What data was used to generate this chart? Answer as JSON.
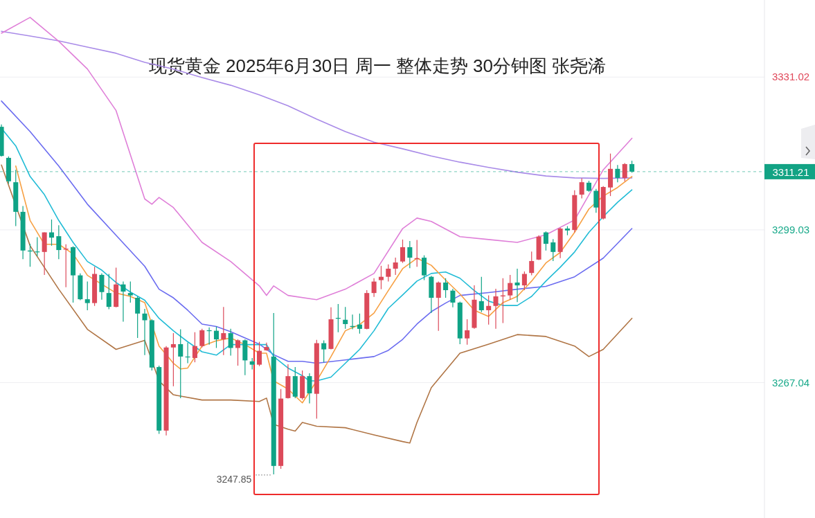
{
  "chart_data": {
    "type": "candlestick",
    "title": "现货黄金 2025年6月30日 周一 整体走势 30分钟图 张尧浠",
    "categories": [
      null,
      null,
      null,
      null,
      null,
      null,
      null,
      null,
      null,
      null,
      null,
      null,
      null,
      null,
      null,
      null,
      null,
      null,
      null,
      null,
      null,
      null,
      null,
      null,
      null,
      null,
      null,
      null,
      null,
      null,
      null,
      null,
      null,
      null,
      null,
      null,
      null,
      null,
      null,
      null,
      null,
      null,
      null,
      null,
      null,
      null,
      null,
      null,
      null,
      null,
      null,
      null,
      null,
      null,
      null,
      null,
      null,
      null,
      null,
      null,
      null,
      null,
      null,
      null,
      null,
      null,
      null,
      null,
      null,
      null,
      null,
      null,
      null,
      null,
      null,
      null,
      null,
      null,
      null,
      null,
      null,
      null,
      null,
      null,
      null,
      null,
      null,
      null,
      null
    ],
    "ohlc": [
      [
        3320.6,
        3321.1,
        3314.4,
        3314.5
      ],
      [
        3314.1,
        3314.4,
        3308.7,
        3309.2
      ],
      [
        3309.0,
        3311.6,
        3299.8,
        3302.8
      ],
      [
        3302.8,
        3304.0,
        3292.9,
        3294.7
      ],
      [
        3294.7,
        3296.1,
        3291.3,
        3294.5
      ],
      [
        3294.5,
        3297.5,
        3293.5,
        3294.4
      ],
      [
        3294.4,
        3298.5,
        3289.6,
        3298.5
      ],
      [
        3298.5,
        3301.2,
        3295.7,
        3297.4
      ],
      [
        3297.7,
        3300.0,
        3292.9,
        3294.8
      ],
      [
        3294.9,
        3296.0,
        3287.0,
        3295.1
      ],
      [
        3295.4,
        3295.6,
        3283.8,
        3289.5
      ],
      [
        3289.5,
        3289.9,
        3284.3,
        3284.5
      ],
      [
        3284.5,
        3288.2,
        3282.2,
        3283.7
      ],
      [
        3283.7,
        3291.3,
        3283.1,
        3289.8
      ],
      [
        3289.6,
        3289.9,
        3284.4,
        3286.0
      ],
      [
        3285.8,
        3289.8,
        3282.4,
        3282.9
      ],
      [
        3282.9,
        3291.1,
        3282.8,
        3287.6
      ],
      [
        3287.6,
        3288.2,
        3279.8,
        3286.1
      ],
      [
        3285.8,
        3288.2,
        3283.8,
        3285.3
      ],
      [
        3284.8,
        3285.1,
        3276.4,
        3281.5
      ],
      [
        3281.5,
        3282.5,
        3272.8,
        3280.1
      ],
      [
        3280.1,
        3280.3,
        3269.6,
        3270.2
      ],
      [
        3270.3,
        3270.6,
        3256.3,
        3257.0
      ],
      [
        3257.0,
        3274.7,
        3256.0,
        3274.4
      ],
      [
        3274.4,
        3277.4,
        3266.3,
        3275.1
      ],
      [
        3275.1,
        3278.2,
        3263.8,
        3272.5
      ],
      [
        3272.5,
        3275.4,
        3271.1,
        3272.4
      ],
      [
        3272.2,
        3277.6,
        3271.3,
        3274.7
      ],
      [
        3274.7,
        3278.3,
        3274.4,
        3278.0
      ],
      [
        3278.0,
        3278.6,
        3275.0,
        3277.9
      ],
      [
        3277.9,
        3278.8,
        3274.3,
        3276.1
      ],
      [
        3276.1,
        3282.9,
        3272.8,
        3277.4
      ],
      [
        3277.4,
        3278.3,
        3272.7,
        3274.3
      ],
      [
        3274.3,
        3276.1,
        3270.6,
        3275.9
      ],
      [
        3275.9,
        3276.1,
        3268.6,
        3271.7
      ],
      [
        3271.5,
        3272.2,
        3269.8,
        3270.8
      ],
      [
        3270.8,
        3275.6,
        3270.5,
        3273.7
      ],
      [
        3273.8,
        3275.4,
        3273.7,
        3274.5
      ],
      [
        3272.5,
        3281.6,
        3247.85,
        3249.6
      ],
      [
        3249.6,
        3265.7,
        3249.0,
        3263.7
      ],
      [
        3263.8,
        3270.9,
        3263.7,
        3268.4
      ],
      [
        3268.4,
        3270.3,
        3263.8,
        3264.1
      ],
      [
        3263.8,
        3269.6,
        3263.5,
        3268.4
      ],
      [
        3268.4,
        3269.0,
        3262.7,
        3264.8
      ],
      [
        3264.7,
        3276.0,
        3259.5,
        3275.3
      ],
      [
        3275.3,
        3275.9,
        3271.3,
        3274.0
      ],
      [
        3274.1,
        3282.8,
        3274.0,
        3280.3
      ],
      [
        3280.6,
        3283.5,
        3277.6,
        3280.5
      ],
      [
        3280.2,
        3282.9,
        3278.3,
        3279.3
      ],
      [
        3278.9,
        3281.3,
        3278.2,
        3278.7
      ],
      [
        3279.2,
        3281.5,
        3277.3,
        3278.3
      ],
      [
        3278.3,
        3286.4,
        3278.2,
        3285.8
      ],
      [
        3285.8,
        3288.9,
        3285.0,
        3288.2
      ],
      [
        3288.5,
        3291.5,
        3286.6,
        3289.2
      ],
      [
        3289.2,
        3291.8,
        3288.2,
        3290.9
      ],
      [
        3290.9,
        3293.2,
        3289.6,
        3292.2
      ],
      [
        3292.4,
        3297.0,
        3292.1,
        3295.4
      ],
      [
        3295.4,
        3296.7,
        3291.0,
        3293.2
      ],
      [
        3292.9,
        3296.9,
        3291.3,
        3293.1
      ],
      [
        3293.2,
        3293.7,
        3288.5,
        3289.5
      ],
      [
        3289.2,
        3289.4,
        3281.6,
        3284.8
      ],
      [
        3284.8,
        3288.2,
        3277.9,
        3288.0
      ],
      [
        3288.0,
        3288.9,
        3284.8,
        3286.4
      ],
      [
        3286.3,
        3286.7,
        3282.8,
        3283.8
      ],
      [
        3283.8,
        3284.0,
        3275.1,
        3276.3
      ],
      [
        3276.3,
        3280.3,
        3275.0,
        3278.0
      ],
      [
        3278.5,
        3287.4,
        3278.3,
        3284.4
      ],
      [
        3284.1,
        3289.2,
        3281.8,
        3282.2
      ],
      [
        3282.2,
        3285.3,
        3279.2,
        3283.1
      ],
      [
        3283.1,
        3286.7,
        3278.3,
        3285.1
      ],
      [
        3285.1,
        3288.9,
        3279.5,
        3285.3
      ],
      [
        3285.3,
        3289.6,
        3284.4,
        3287.9
      ],
      [
        3288.0,
        3290.9,
        3283.9,
        3287.4
      ],
      [
        3287.4,
        3290.3,
        3286.4,
        3289.8
      ],
      [
        3290.0,
        3294.5,
        3289.5,
        3292.5
      ],
      [
        3292.8,
        3297.9,
        3292.7,
        3297.6
      ],
      [
        3298.5,
        3298.7,
        3294.7,
        3296.1
      ],
      [
        3296.4,
        3297.1,
        3292.5,
        3294.4
      ],
      [
        3294.4,
        3299.5,
        3293.1,
        3299.3
      ],
      [
        3299.3,
        3299.8,
        3297.9,
        3298.9
      ],
      [
        3299.0,
        3307.3,
        3298.5,
        3306.3
      ],
      [
        3306.4,
        3309.8,
        3305.6,
        3309.0
      ],
      [
        3308.9,
        3309.3,
        3307.0,
        3307.2
      ],
      [
        3307.2,
        3307.6,
        3302.6,
        3303.7
      ],
      [
        3301.4,
        3308.2,
        3301.2,
        3308.0
      ],
      [
        3307.9,
        3315.0,
        3306.1,
        3311.8
      ],
      [
        3311.8,
        3312.6,
        3309.0,
        3309.9
      ],
      [
        3309.9,
        3313.0,
        3309.2,
        3312.8
      ],
      [
        3312.8,
        3313.5,
        3311.0,
        3311.21
      ]
    ],
    "series": [
      {
        "type": "line",
        "color": "#a98be8",
        "values": [
          3340.6,
          null,
          null,
          null,
          3339.6,
          null,
          null,
          null,
          3338.6,
          null,
          null,
          null,
          3337.3,
          null,
          null,
          null,
          3336.0,
          null,
          null,
          null,
          3334.1,
          null,
          null,
          null,
          3332.7,
          null,
          null,
          null,
          3330.9,
          null,
          null,
          null,
          3329.3,
          null,
          null,
          null,
          3327.3,
          null,
          null,
          null,
          3325.0,
          null,
          null,
          null,
          3322.2,
          null,
          null,
          null,
          3319.6,
          null,
          null,
          null,
          3317.4,
          null,
          null,
          null,
          3316.0,
          null,
          null,
          null,
          3314.5,
          null,
          null,
          null,
          3313.2,
          null,
          null,
          null,
          3312.1,
          null,
          null,
          null,
          3311.1,
          null,
          null,
          null,
          3310.3,
          null,
          null,
          null,
          3309.9,
          null,
          null,
          null,
          3309.8,
          null,
          null,
          null,
          3309.9
        ]
      },
      {
        "type": "line",
        "color": "#df7fd8",
        "values": [
          3340.2,
          null,
          null,
          null,
          3343.5,
          null,
          null,
          null,
          3338.5,
          null,
          null,
          null,
          3332.7,
          null,
          null,
          null,
          3324.0,
          null,
          null,
          null,
          3305.5,
          3304.4,
          3305.8,
          null,
          3303.7,
          null,
          null,
          null,
          3296.4,
          null,
          null,
          null,
          3292.4,
          null,
          null,
          null,
          3287.3,
          3285.3,
          3287.3,
          null,
          3285.3,
          null,
          null,
          null,
          3284.4,
          null,
          null,
          null,
          3286.6,
          null,
          null,
          null,
          3289.9,
          null,
          null,
          null,
          3299.3,
          null,
          3301.5,
          null,
          3300.8,
          null,
          null,
          null,
          3297.6,
          null,
          null,
          null,
          3297.0,
          null,
          null,
          null,
          3296.4,
          null,
          null,
          null,
          3298.0,
          null,
          null,
          null,
          3301.1,
          null,
          null,
          null,
          3311.6,
          null,
          null,
          null,
          3318.2
        ]
      },
      {
        "type": "line",
        "color": "#b07545",
        "values": [
          3312.6,
          null,
          null,
          null,
          3295.7,
          null,
          null,
          null,
          3286.6,
          null,
          null,
          null,
          3278.2,
          null,
          null,
          null,
          3274.0,
          null,
          null,
          null,
          3275.9,
          null,
          3267.4,
          null,
          3264.5,
          null,
          null,
          null,
          3263.4,
          null,
          null,
          null,
          3263.4,
          null,
          null,
          null,
          3263.1,
          3263.8,
          3258.3,
          null,
          3257.3,
          3256.9,
          3258.7,
          null,
          3257.9,
          null,
          null,
          null,
          3257.6,
          null,
          null,
          null,
          3256.1,
          null,
          null,
          null,
          3254.7,
          3254.4,
          3258.7,
          null,
          3266.0,
          null,
          null,
          null,
          3273.2,
          null,
          null,
          null,
          3275.1,
          null,
          null,
          null,
          3277.1,
          null,
          null,
          null,
          3276.7,
          null,
          null,
          null,
          3274.7,
          null,
          3272.5,
          null,
          3274.0,
          null,
          null,
          null,
          3280.5
        ]
      },
      {
        "type": "line",
        "color": "#6b6cf0",
        "values": [
          3326.0,
          null,
          null,
          null,
          3319.6,
          null,
          null,
          null,
          3312.4,
          null,
          null,
          null,
          3304.4,
          null,
          null,
          null,
          3297.9,
          null,
          null,
          null,
          3291.4,
          null,
          3286.6,
          null,
          3284.8,
          null,
          3282.2,
          null,
          3279.3,
          null,
          3278.8,
          null,
          3277.7,
          null,
          null,
          null,
          3275.1,
          null,
          3272.9,
          null,
          3271.5,
          null,
          3271.5,
          null,
          3271.1,
          null,
          null,
          null,
          3271.8,
          null,
          null,
          null,
          3272.5,
          null,
          3273.8,
          null,
          3276.1,
          null,
          3279.3,
          null,
          3281.9,
          null,
          3283.7,
          null,
          3285.3,
          null,
          null,
          null,
          3285.9,
          null,
          null,
          null,
          3286.6,
          null,
          null,
          null,
          3287.2,
          null,
          null,
          null,
          3289.2,
          null,
          null,
          null,
          3293.1,
          null,
          null,
          null,
          3299.3
        ]
      },
      {
        "type": "line",
        "color": "#22bcd6",
        "values": [
          3320.3,
          null,
          3316.6,
          null,
          3310.2,
          null,
          3306.4,
          null,
          3301.0,
          null,
          3296.4,
          null,
          3292.4,
          null,
          3290.6,
          null,
          3288.0,
          null,
          3286.0,
          null,
          3284.3,
          null,
          3280.5,
          null,
          3277.9,
          null,
          3275.6,
          null,
          3273.5,
          null,
          3272.8,
          null,
          3275.0,
          null,
          3275.0,
          null,
          null,
          3275.0,
          3272.5,
          null,
          3270.1,
          null,
          3268.5,
          3267.4,
          3267.4,
          null,
          3268.2,
          null,
          3271.1,
          null,
          3274.0,
          null,
          3277.9,
          null,
          3282.6,
          null,
          3285.4,
          null,
          3288.3,
          null,
          3289.9,
          null,
          3290.2,
          null,
          3288.9,
          null,
          3286.3,
          null,
          3284.1,
          null,
          3283.2,
          null,
          3283.2,
          null,
          3285.1,
          null,
          3288.3,
          null,
          3291.2,
          null,
          3294.4,
          null,
          3298.5,
          null,
          3301.8,
          null,
          3304.8,
          null,
          3307.4
        ]
      },
      {
        "type": "line",
        "color": "#f7a043",
        "values": [
          null,
          null,
          3312.4,
          null,
          3301.0,
          null,
          3296.0,
          null,
          3296.0,
          null,
          3294.0,
          null,
          3289.5,
          null,
          null,
          null,
          3285.8,
          null,
          3285.1,
          null,
          3283.8,
          null,
          3274.7,
          null,
          3271.1,
          3269.9,
          3270.1,
          null,
          3274.7,
          null,
          3275.8,
          null,
          3276.4,
          null,
          3275.0,
          null,
          3273.2,
          3273.2,
          3267.4,
          null,
          3265.7,
          null,
          3262.8,
          null,
          3267.4,
          null,
          3272.5,
          null,
          3277.9,
          null,
          3279.2,
          null,
          3281.6,
          null,
          3286.3,
          null,
          3290.9,
          null,
          3293.1,
          null,
          3291.6,
          null,
          3288.5,
          null,
          3285.6,
          null,
          3282.2,
          null,
          3280.9,
          null,
          3283.8,
          null,
          3285.1,
          null,
          3288.3,
          null,
          3292.1,
          null,
          3294.3,
          null,
          3298.5,
          null,
          3303.4,
          null,
          3306.1,
          null,
          3307.9,
          null,
          3310.2
        ]
      }
    ],
    "ylim": [
      3238.7,
      3347.15
    ],
    "yticks": [
      3331.02,
      3299.03,
      3267.04
    ],
    "grid": "y",
    "ref_lines": [
      {
        "axis": "y",
        "value": 3311.21,
        "label": "3311.21",
        "color": "#12a384",
        "line_style": "dashed"
      }
    ],
    "annotations": [
      "3247.85"
    ]
  }
}
